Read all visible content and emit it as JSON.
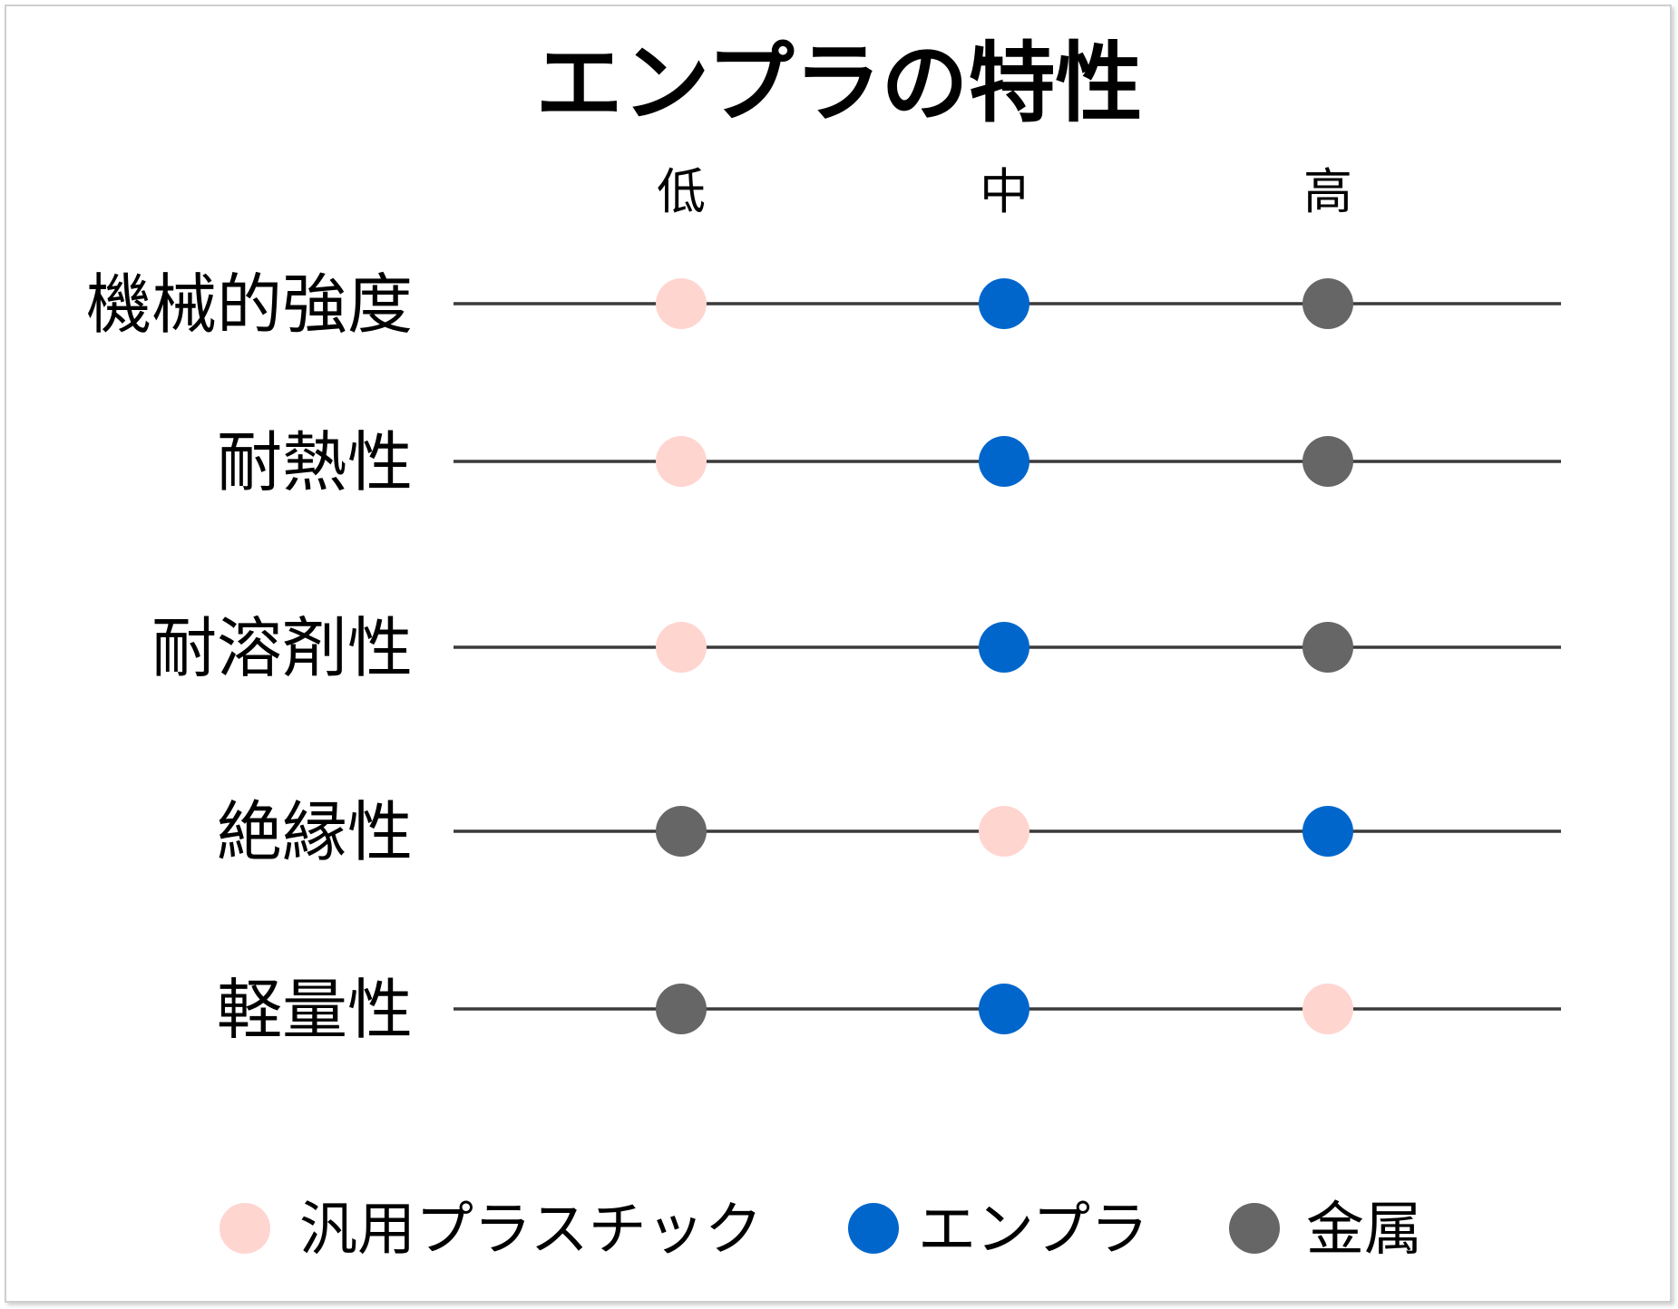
{
  "chart_data": {
    "type": "scatter",
    "title": "エンプラの特性",
    "levels": [
      "低",
      "中",
      "高"
    ],
    "categories": [
      "機械的強度",
      "耐熱性",
      "耐溶剤性",
      "絶縁性",
      "軽量性"
    ],
    "series": [
      {
        "name": "汎用プラスチック",
        "color": "#FFD5D0",
        "values": [
          "低",
          "低",
          "低",
          "中",
          "高"
        ]
      },
      {
        "name": "エンプラ",
        "color": "#0066CC",
        "values": [
          "中",
          "中",
          "中",
          "高",
          "中"
        ]
      },
      {
        "name": "金属",
        "color": "#666666",
        "values": [
          "高",
          "高",
          "高",
          "低",
          "低"
        ]
      }
    ],
    "legend_position": "bottom"
  }
}
